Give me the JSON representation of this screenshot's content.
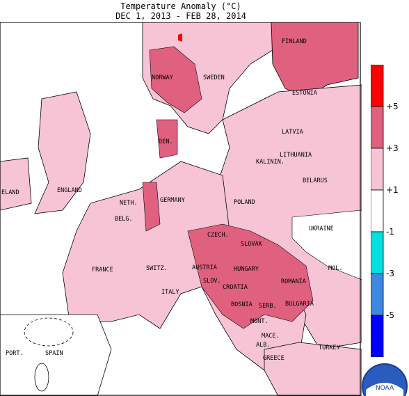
{
  "title": {
    "line1": "Temperature Anomaly (°C)",
    "line2": "DEC  1, 2013 - FEB 28, 2014"
  },
  "legend": {
    "labels": [
      "+5",
      "+3",
      "+1",
      "-1",
      "-3",
      "-5"
    ],
    "colors": [
      "#ff0000",
      "#e06080",
      "#f6c4d4",
      "#ffffff",
      "#00e0e0",
      "#3d88e0",
      "#0000ff"
    ]
  },
  "countries": [
    "FINLAND",
    "NORWAY",
    "SWEDEN",
    "ESTONIA",
    "LATVIA",
    "DEN.",
    "LITHUANIA",
    "ENGLAND",
    "ELAND",
    "BELARUS",
    "NETH.",
    "POLAND",
    "GERMANY",
    "BELG.",
    "CZECH.",
    "UKRAINE",
    "SLOVAK",
    "FRANCE",
    "AUSTRIA",
    "HUNGARY",
    "SWITZ.",
    "MOL.",
    "ROMANIA",
    "SLOV.",
    "CROATIA",
    "ITALY",
    "BOSNIA",
    "SERB.",
    "BULGARIA",
    "MONT.",
    "MACE.",
    "PORT.",
    "SPAIN",
    "ALB.",
    "GREECE",
    "TURKEY",
    "KALININ."
  ],
  "logo": {
    "text": "NOAA"
  }
}
